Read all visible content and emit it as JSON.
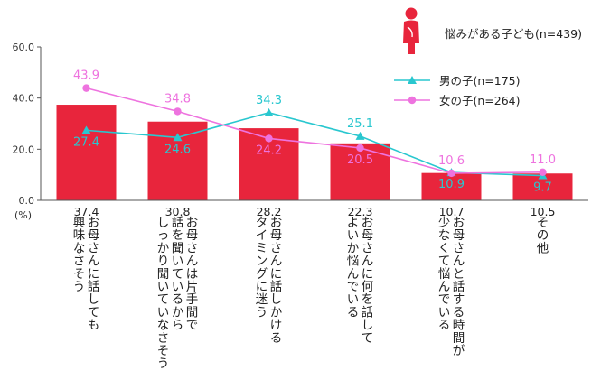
{
  "chart_data": {
    "type": "bar",
    "yunit": "(%)",
    "ylim": [
      0,
      60
    ],
    "yticks": [
      "0.0",
      "20.0",
      "40.0",
      "60.0"
    ],
    "categories": [
      [
        "お母さんに話しても",
        "興味なさそう"
      ],
      [
        "お母さんは片手間で",
        "話を聞いているから",
        "しっかり聞いていなさそう"
      ],
      [
        "お母さんに話しかける",
        "タイミングに迷う"
      ],
      [
        "お母さんに何を話して",
        "よいか悩んでいる"
      ],
      [
        "お母さんと話する時間が",
        "少なくて悩んでいる"
      ],
      [
        "その他"
      ]
    ],
    "series": [
      {
        "name": "悩みがある子ども(n=439)",
        "kind": "bar",
        "color": "#e8253c",
        "values": [
          37.4,
          30.8,
          28.2,
          22.3,
          10.7,
          10.5
        ],
        "labels": [
          "37.4",
          "30.8",
          "28.2",
          "22.3",
          "10.7",
          "10.5"
        ]
      },
      {
        "name": "男の子(n=175)",
        "kind": "line",
        "marker": "triangle",
        "color": "#29c7cf",
        "values": [
          27.4,
          24.6,
          34.3,
          25.1,
          10.9,
          9.7
        ],
        "labels": [
          "27.4",
          "24.6",
          "34.3",
          "25.1",
          "10.9",
          "9.7"
        ]
      },
      {
        "name": "女の子(n=264)",
        "kind": "line",
        "marker": "circle",
        "color": "#ee73df",
        "values": [
          43.9,
          34.8,
          24.2,
          20.5,
          10.6,
          11.0
        ],
        "labels": [
          "43.9",
          "34.8",
          "24.2",
          "20.5",
          "10.6",
          "11.0"
        ]
      }
    ],
    "legend": {
      "placement": "top-right",
      "items": [
        "悩みがある子ども(n=439)",
        "男の子(n=175)",
        "女の子(n=264)"
      ]
    }
  }
}
